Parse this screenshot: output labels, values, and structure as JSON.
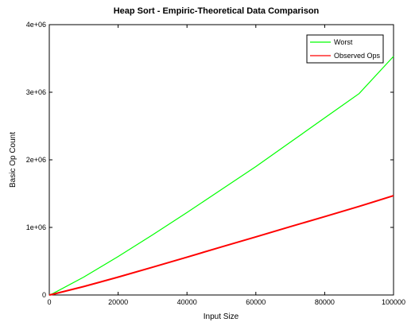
{
  "chart_data": {
    "type": "line",
    "title": "Heap Sort - Empiric-Theoretical Data Comparison",
    "xlabel": "Input Size",
    "ylabel": "Basic Op Count",
    "xlim": [
      0,
      100000
    ],
    "ylim": [
      0,
      4000000
    ],
    "xticks": [
      0,
      20000,
      40000,
      60000,
      80000,
      100000
    ],
    "xtick_labels": [
      "0",
      "20000",
      "40000",
      "60000",
      "80000",
      "100000"
    ],
    "yticks": [
      0,
      1000000,
      2000000,
      3000000,
      4000000
    ],
    "ytick_labels": [
      "0",
      "1e+06",
      "2e+06",
      "3e+06",
      "4e+06"
    ],
    "grid": false,
    "legend_position": "top-right",
    "x": [
      1000,
      10000,
      20000,
      30000,
      40000,
      50000,
      60000,
      70000,
      80000,
      90000,
      100000
    ],
    "series": [
      {
        "name": "Worst",
        "color": "#00ff00",
        "values": [
          19900,
          265000,
          570000,
          890000,
          1220000,
          1560000,
          1900000,
          2260000,
          2620000,
          2980000,
          3530000
        ]
      },
      {
        "name": "Observed Ops",
        "color": "#ff0000",
        "values": [
          10000,
          125000,
          265000,
          410000,
          560000,
          710000,
          860000,
          1010000,
          1160000,
          1310000,
          1470000
        ]
      }
    ]
  }
}
